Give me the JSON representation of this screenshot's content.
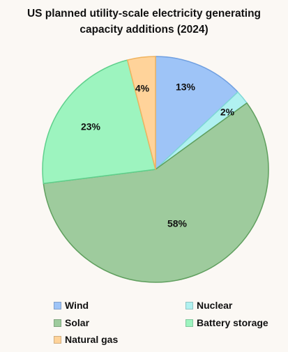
{
  "chart_data": {
    "type": "pie",
    "title_line1": "US planned utility-scale electricity generating",
    "title_line2": "capacity additions (2024)",
    "slices": [
      {
        "name": "Wind",
        "value": 13,
        "label": "13%",
        "color": "#9ec4f7",
        "stroke": "#6f9fe0"
      },
      {
        "name": "Nuclear",
        "value": 2,
        "label": "2%",
        "color": "#b0f1f0",
        "stroke": "#7fd8d6"
      },
      {
        "name": "Solar",
        "value": 58,
        "label": "58%",
        "color": "#9ecb9d",
        "stroke": "#5f9f5e"
      },
      {
        "name": "Battery storage",
        "value": 23,
        "label": "23%",
        "color": "#9df4bf",
        "stroke": "#5fd08c"
      },
      {
        "name": "Natural gas",
        "value": 4,
        "label": "4%",
        "color": "#ffd39a",
        "stroke": "#f0b35e"
      }
    ],
    "legend_position": "bottom"
  },
  "colors": {
    "background": "#fbf8f4",
    "text": "#111111"
  }
}
